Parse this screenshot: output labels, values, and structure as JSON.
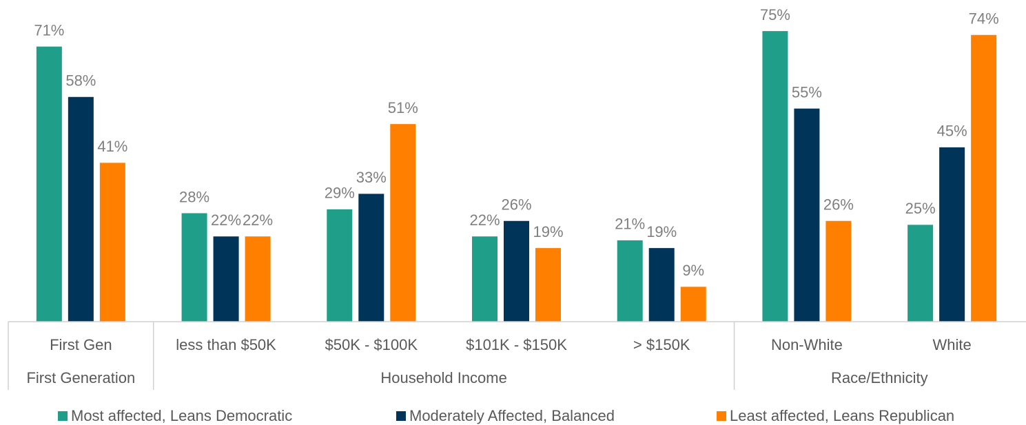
{
  "chart_data": {
    "type": "bar",
    "categories": [
      "First Gen",
      "less than $50K",
      "$50K - $100K",
      "$101K - $150K",
      "> $150K",
      "Non-White",
      "White"
    ],
    "groups": [
      {
        "name": "First Generation",
        "size": 1
      },
      {
        "name": "Household Income",
        "size": 4
      },
      {
        "name": "Race/Ethnicity",
        "size": 2
      }
    ],
    "series": [
      {
        "name": "Most affected, Leans Democratic",
        "color": "#1f9e89",
        "values": [
          71,
          28,
          29,
          22,
          21,
          75,
          25
        ],
        "value_labels": [
          "71%",
          "28%",
          "29%",
          "22%",
          "21%",
          "75%",
          "25%"
        ]
      },
      {
        "name": "Moderately Affected, Balanced",
        "color": "#003459",
        "values": [
          58,
          22,
          33,
          26,
          19,
          55,
          45
        ],
        "value_labels": [
          "58%",
          "22%",
          "33%",
          "26%",
          "19%",
          "55%",
          "45%"
        ]
      },
      {
        "name": "Least affected, Leans Republican",
        "color": "#ff7f00",
        "values": [
          41,
          22,
          51,
          19,
          9,
          26,
          74
        ],
        "value_labels": [
          "41%",
          "22%",
          "51%",
          "19%",
          "9%",
          "26%",
          "74%"
        ]
      }
    ],
    "ylim": [
      0,
      80
    ],
    "legend": "bottom"
  }
}
